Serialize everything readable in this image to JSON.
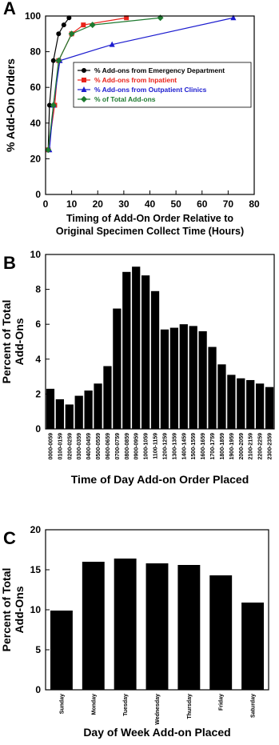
{
  "chart_data": [
    {
      "type": "line",
      "panel": "A",
      "ylabel": "% Add-On Orders",
      "xlabel": [
        "Timing of Add-On Order Relative to",
        "Original Specimen Collect Time (Hours)"
      ],
      "xlim": [
        0,
        80
      ],
      "xticks": [
        0,
        10,
        20,
        30,
        40,
        50,
        60,
        70,
        80
      ],
      "ylim": [
        0,
        100
      ],
      "yticks": [
        0,
        20,
        40,
        60,
        80,
        100
      ],
      "legend": "upper right",
      "series": [
        {
          "name": "% Add-ons from Emergency Department",
          "color": "#000000",
          "marker": "circle",
          "x": [
            1,
            1.5,
            3,
            5,
            7,
            9
          ],
          "values": [
            25,
            50,
            75,
            90,
            95,
            99
          ]
        },
        {
          "name": "% Add-ons from Inpatient",
          "color": "#e8231b",
          "marker": "square",
          "x": [
            1,
            3.5,
            5,
            10,
            14.5,
            31
          ],
          "values": [
            25,
            50,
            75,
            90,
            95,
            99
          ]
        },
        {
          "name": "% Add-ons from Outpatient Clinics",
          "color": "#1c1ccf",
          "marker": "triangle",
          "x": [
            1.5,
            3,
            5.5,
            25.5,
            72
          ],
          "values": [
            25,
            50,
            75,
            84,
            99
          ]
        },
        {
          "name": "% of Total Add-ons",
          "color": "#1e7a30",
          "marker": "diamond",
          "x": [
            1,
            3,
            5,
            10,
            18,
            44
          ],
          "values": [
            25,
            50,
            75,
            90,
            95,
            99
          ]
        }
      ]
    },
    {
      "type": "bar",
      "panel": "B",
      "ylabel": [
        "Percent of Total",
        "Add-Ons"
      ],
      "xlabel": "Time of Day Add-on Order Placed",
      "categories": [
        "0000-0059",
        "0100-0159",
        "0200-0259",
        "0300-0359",
        "0400-0459",
        "0500-0559",
        "0600-0659",
        "0700-0759",
        "0800-0859",
        "0900-0959",
        "1000-1059",
        "1100-1159",
        "1200-1259",
        "1300-1359",
        "1400-1459",
        "1500-1559",
        "1600-1659",
        "1700-1759",
        "1800-1859",
        "1900-1959",
        "2000-2059",
        "2100-2159",
        "2200-2259",
        "2300-2359"
      ],
      "values": [
        2.3,
        1.7,
        1.4,
        1.9,
        2.2,
        2.6,
        3.6,
        6.9,
        9.0,
        9.3,
        8.8,
        7.9,
        5.7,
        5.8,
        6.0,
        5.9,
        5.6,
        4.7,
        3.7,
        3.1,
        2.9,
        2.8,
        2.6,
        2.4
      ],
      "color": "#000000",
      "ylim": [
        0,
        10
      ],
      "yticks": [
        0,
        2,
        4,
        6,
        8,
        10
      ]
    },
    {
      "type": "bar",
      "panel": "C",
      "ylabel": [
        "Percent of Total",
        "Add-Ons"
      ],
      "xlabel": "Day of Week Add-on Placed",
      "categories": [
        "Sunday",
        "Monday",
        "Tuesday",
        "Wednesday",
        "Thursday",
        "Friday",
        "Saturday"
      ],
      "values": [
        9.9,
        16.0,
        16.4,
        15.8,
        15.6,
        14.3,
        10.9
      ],
      "color": "#000000",
      "ylim": [
        0,
        20
      ],
      "yticks": [
        0,
        5,
        10,
        15,
        20
      ]
    }
  ]
}
